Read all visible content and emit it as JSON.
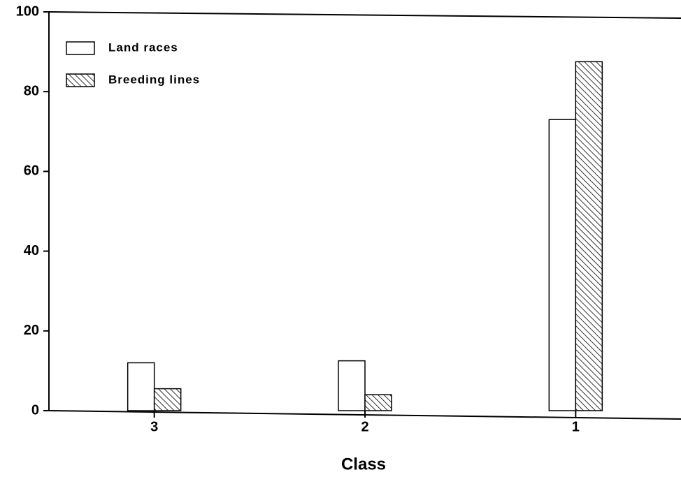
{
  "chart_data": {
    "type": "bar",
    "xlabel": "Class",
    "categories": [
      "3",
      "2",
      "1"
    ],
    "series": [
      {
        "name": "Land races",
        "color": "#ffffff",
        "hatch": false,
        "values": [
          12,
          12.5,
          73
        ]
      },
      {
        "name": "Breeding lines",
        "color": "#000000",
        "hatch": true,
        "values": [
          5.5,
          4,
          87.5
        ]
      }
    ],
    "ylim": [
      0,
      100
    ],
    "yticks": [
      0,
      20,
      40,
      60,
      80,
      100
    ],
    "legend": "upper left"
  }
}
